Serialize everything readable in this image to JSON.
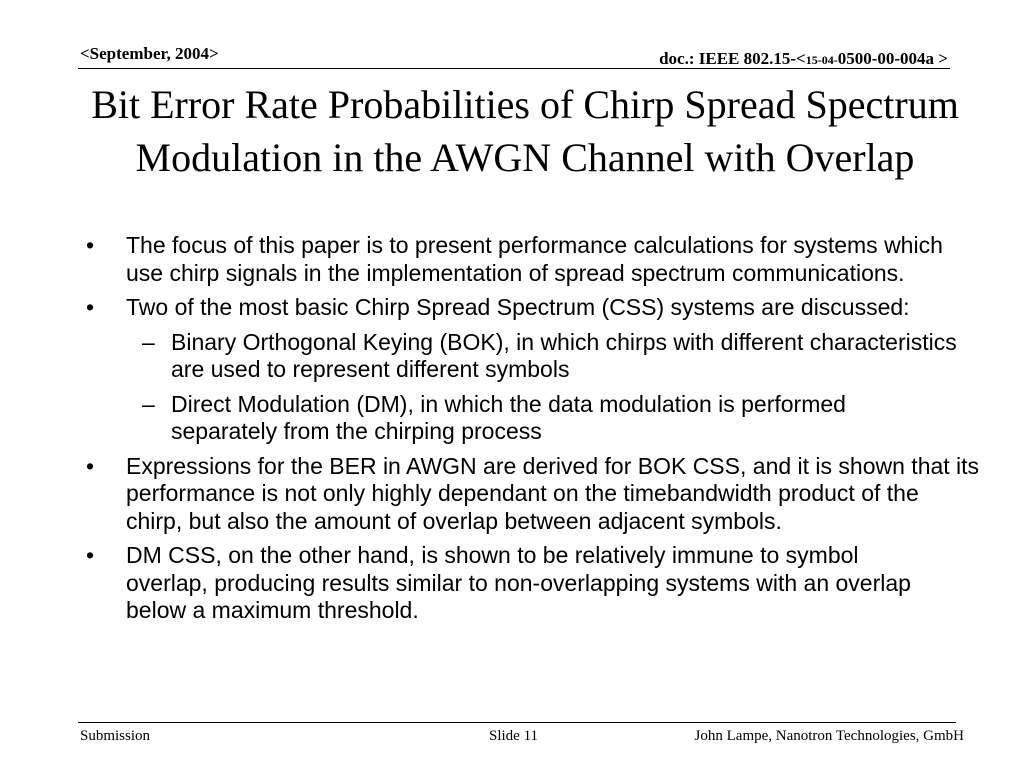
{
  "header": {
    "date": "<September, 2004>",
    "doc_prefix": "doc.: IEEE 802.15-<",
    "doc_small": "15-04-",
    "doc_suffix": "0500-00-004a >"
  },
  "title": "Bit Error Rate Probabilities of Chirp Spread Spectrum Modulation in the AWGN Channel with Overlap",
  "bullets": [
    {
      "marker": "•",
      "text": "The focus of this paper is to present performance calculations for systems which use chirp signals in the implementation of spread spectrum communications."
    },
    {
      "marker": "•",
      "text": "Two of the most basic Chirp Spread Spectrum (CSS) systems are discussed:",
      "sub": [
        {
          "marker": "–",
          "text": "Binary Orthogonal Keying (BOK), in which chirps with different characteristics are used to represent different symbols"
        },
        {
          "marker": "–",
          "text": "Direct Modulation (DM), in which the data modulation is performed separately from the chirping process"
        }
      ]
    },
    {
      "marker": "•",
      "text": "Expressions for the BER in AWGN are derived for BOK CSS, and it is shown that its performance is not only highly dependant on the timebandwidth product of the chirp, but also the amount of overlap between adjacent symbols."
    },
    {
      "marker": "•",
      "text": "DM CSS, on the other hand, is shown to be relatively immune to symbol overlap, producing results similar to non-overlapping systems with an overlap below a maximum threshold."
    }
  ],
  "footer": {
    "left": "Submission",
    "center": "Slide 11",
    "right": "John Lampe, Nanotron Technologies, GmbH"
  }
}
